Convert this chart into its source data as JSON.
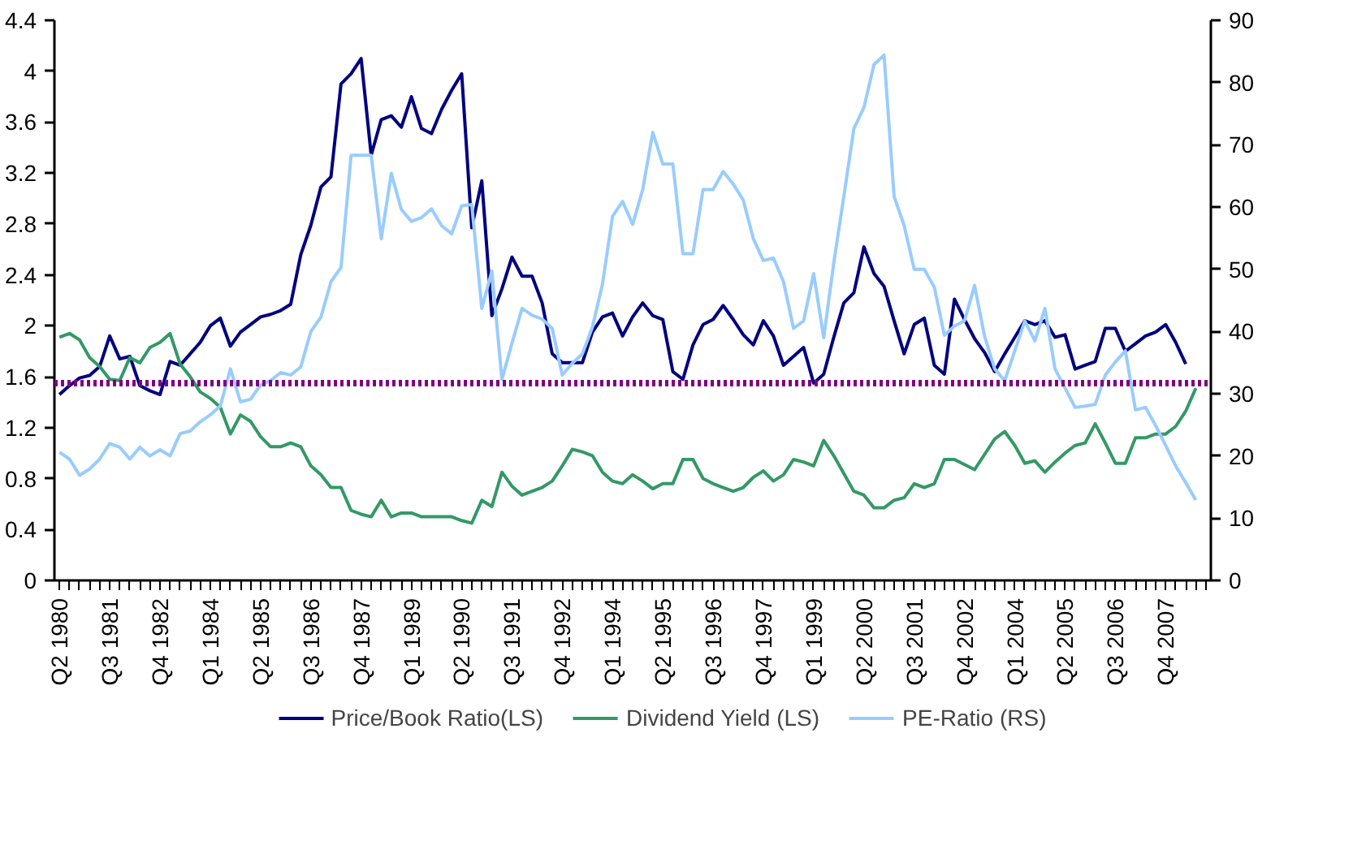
{
  "chart_data": {
    "type": "line",
    "categories": [
      "Q2 1980",
      null,
      null,
      null,
      null,
      "Q3 1981",
      null,
      null,
      null,
      null,
      "Q4 1982",
      null,
      null,
      null,
      null,
      "Q1 1984",
      null,
      null,
      null,
      null,
      "Q2 1985",
      null,
      null,
      null,
      null,
      "Q3 1986",
      null,
      null,
      null,
      null,
      "Q4 1987",
      null,
      null,
      null,
      null,
      "Q1 1989",
      null,
      null,
      null,
      null,
      "Q2 1990",
      null,
      null,
      null,
      null,
      "Q3 1991",
      null,
      null,
      null,
      null,
      "Q4 1992",
      null,
      null,
      null,
      null,
      "Q1 1994",
      null,
      null,
      null,
      null,
      "Q2 1995",
      null,
      null,
      null,
      null,
      "Q3 1996",
      null,
      null,
      null,
      null,
      "Q4 1997",
      null,
      null,
      null,
      null,
      "Q1 1999",
      null,
      null,
      null,
      null,
      "Q2 2000",
      null,
      null,
      null,
      null,
      "Q3 2001",
      null,
      null,
      null,
      null,
      "Q4 2002",
      null,
      null,
      null,
      null,
      "Q1 2004",
      null,
      null,
      null,
      null,
      "Q2 2005",
      null,
      null,
      null,
      null,
      "Q3 2006",
      null,
      null,
      null,
      null,
      "Q4 2007",
      null,
      null,
      null,
      null
    ],
    "series": [
      {
        "name": "Price/Book Ratio(LS)",
        "color": "#000080",
        "values": [
          1.46,
          1.53,
          1.59,
          1.61,
          1.68,
          1.92,
          1.74,
          1.76,
          1.53,
          1.49,
          1.46,
          1.72,
          1.69,
          1.78,
          1.87,
          2.0,
          2.06,
          1.84,
          1.95,
          2.01,
          2.07,
          2.09,
          2.12,
          2.17,
          2.56,
          2.79,
          3.09,
          3.17,
          3.9,
          3.98,
          4.1,
          3.34,
          3.62,
          3.65,
          3.56,
          3.8,
          3.55,
          3.51,
          3.7,
          3.85,
          3.98,
          2.77,
          3.14,
          2.08,
          2.29,
          2.54,
          2.39,
          2.39,
          2.18,
          1.78,
          1.71,
          1.71,
          1.71,
          1.95,
          2.07,
          2.1,
          1.92,
          2.07,
          2.18,
          2.08,
          2.05,
          1.64,
          1.58,
          1.85,
          2.01,
          2.05,
          2.16,
          2.05,
          1.93,
          1.85,
          2.04,
          1.92,
          1.69,
          1.76,
          1.83,
          1.55,
          1.62,
          1.91,
          2.18,
          2.26,
          2.62,
          2.41,
          2.31,
          2.04,
          1.78,
          2.01,
          2.06,
          1.69,
          1.62,
          2.21,
          2.05,
          1.9,
          1.79,
          1.64,
          1.78,
          1.91,
          2.04,
          2.01,
          2.04,
          1.91,
          1.93,
          1.66,
          1.69,
          1.72,
          1.98,
          1.98,
          1.8,
          1.86,
          1.92,
          1.95,
          2.01,
          1.87,
          1.7,
          null,
          null
        ]
      },
      {
        "name": "Dividend Yield (LS)",
        "color": "#339966",
        "values": [
          1.91,
          1.94,
          1.89,
          1.75,
          1.68,
          1.58,
          1.57,
          1.75,
          1.71,
          1.83,
          1.87,
          1.94,
          1.7,
          1.6,
          1.48,
          1.43,
          1.36,
          1.15,
          1.3,
          1.25,
          1.13,
          1.05,
          1.05,
          1.08,
          1.05,
          0.9,
          0.83,
          0.73,
          0.73,
          0.55,
          0.52,
          0.5,
          0.63,
          0.5,
          0.53,
          0.53,
          0.5,
          0.5,
          0.5,
          0.5,
          0.47,
          0.45,
          0.63,
          0.58,
          0.85,
          0.74,
          0.67,
          0.7,
          0.73,
          0.78,
          0.9,
          1.03,
          1.01,
          0.98,
          0.85,
          0.78,
          0.76,
          0.83,
          0.78,
          0.72,
          0.76,
          0.76,
          0.95,
          0.95,
          0.8,
          0.76,
          0.73,
          0.7,
          0.73,
          0.81,
          0.86,
          0.78,
          0.83,
          0.95,
          0.93,
          0.9,
          1.1,
          0.98,
          0.84,
          0.7,
          0.67,
          0.57,
          0.57,
          0.63,
          0.65,
          0.76,
          0.73,
          0.76,
          0.95,
          0.95,
          0.91,
          0.87,
          0.99,
          1.11,
          1.17,
          1.06,
          0.92,
          0.94,
          0.85,
          0.93,
          1.0,
          1.06,
          1.08,
          1.23,
          1.08,
          0.92,
          0.92,
          1.12,
          1.12,
          1.15,
          1.15,
          1.21,
          1.33,
          1.51,
          null
        ]
      },
      {
        "name": "PE-Ratio (RS)",
        "color": "#99ccff",
        "axis": "y2",
        "values": [
          20.6,
          19.5,
          16.9,
          17.9,
          19.5,
          22.0,
          21.4,
          19.5,
          21.4,
          20.0,
          21.0,
          20.0,
          23.6,
          24.0,
          25.5,
          26.6,
          28.0,
          34.0,
          28.7,
          29.1,
          31.4,
          32.1,
          33.4,
          33.0,
          34.3,
          40.0,
          42.3,
          48.0,
          50.3,
          68.3,
          68.3,
          68.3,
          54.9,
          65.4,
          59.6,
          57.7,
          58.3,
          59.7,
          57.0,
          55.7,
          60.2,
          60.4,
          43.7,
          49.7,
          32.3,
          38.1,
          43.7,
          42.6,
          42.0,
          40.5,
          33.0,
          34.9,
          36.4,
          40.7,
          47.6,
          58.5,
          60.9,
          57.2,
          62.8,
          72.0,
          66.9,
          66.9,
          52.5,
          52.5,
          62.8,
          62.8,
          65.7,
          63.7,
          61.1,
          54.9,
          51.4,
          51.8,
          48.0,
          40.5,
          41.7,
          49.3,
          39.0,
          51.0,
          61.7,
          72.6,
          76.0,
          82.9,
          84.4,
          61.7,
          57.0,
          50.0,
          50.0,
          47.1,
          39.4,
          40.9,
          41.7,
          47.4,
          39.2,
          34.0,
          32.1,
          36.9,
          41.7,
          38.5,
          43.7,
          34.0,
          30.9,
          27.8,
          28.0,
          28.3,
          33.0,
          35.1,
          36.9,
          27.4,
          27.8,
          24.9,
          21.7,
          18.4,
          15.7,
          12.9,
          null
        ]
      }
    ],
    "ylim": [
      0,
      4.4
    ],
    "yticks": [
      0,
      0.4,
      0.8,
      1.2,
      1.6,
      2,
      2.4,
      2.8,
      3.2,
      3.6,
      4,
      4.4
    ],
    "y2lim": [
      0,
      90
    ],
    "y2ticks": [
      0,
      10,
      20,
      30,
      40,
      50,
      60,
      70,
      80,
      90
    ],
    "ref_lines": [
      {
        "axis": "y",
        "value": 1.55,
        "color": "#800080",
        "line_style": "dotted"
      }
    ],
    "legend": "bottom",
    "grid": false,
    "line_style": "solid",
    "marker": "none"
  }
}
